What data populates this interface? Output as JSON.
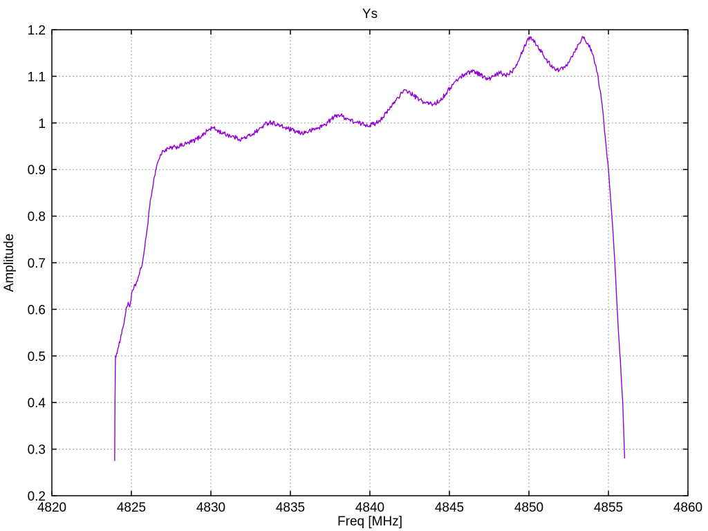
{
  "chart_data": {
    "type": "line",
    "title": "Ys",
    "xlabel": "Freq [MHz]",
    "ylabel": "Amplitude",
    "xlim": [
      4820,
      4860
    ],
    "ylim": [
      0.2,
      1.2
    ],
    "xticks": [
      4820,
      4825,
      4830,
      4835,
      4840,
      4845,
      4850,
      4855,
      4860
    ],
    "xtick_labels": [
      "4820",
      "4825",
      "4830",
      "4835",
      "4840",
      "4845",
      "4850",
      "4855",
      "4860"
    ],
    "yticks": [
      0.2,
      0.3,
      0.4,
      0.5,
      0.6,
      0.7,
      0.8,
      0.9,
      1.0,
      1.1,
      1.2
    ],
    "ytick_labels": [
      "0.2",
      "0.3",
      "0.4",
      "0.5",
      "0.6",
      "0.7",
      "0.8",
      "0.9",
      "1",
      "1.1",
      "1.2"
    ],
    "grid": "dashed",
    "legend": "none",
    "colors": {
      "line": "#9400D3",
      "grid": "#ababab",
      "axis": "#000000",
      "background": "#ffffff",
      "text": "#000000"
    },
    "trace_noise_amplitude": 0.005,
    "series": [
      {
        "name": "Ys",
        "points": [
          [
            4823.95,
            0.275
          ],
          [
            4823.97,
            0.4
          ],
          [
            4824.0,
            0.5
          ],
          [
            4824.1,
            0.505
          ],
          [
            4824.2,
            0.52
          ],
          [
            4824.35,
            0.545
          ],
          [
            4824.5,
            0.565
          ],
          [
            4824.65,
            0.595
          ],
          [
            4824.8,
            0.615
          ],
          [
            4824.9,
            0.605
          ],
          [
            4825.0,
            0.63
          ],
          [
            4825.15,
            0.645
          ],
          [
            4825.3,
            0.655
          ],
          [
            4825.5,
            0.675
          ],
          [
            4825.7,
            0.7
          ],
          [
            4825.85,
            0.735
          ],
          [
            4826.0,
            0.775
          ],
          [
            4826.15,
            0.82
          ],
          [
            4826.3,
            0.855
          ],
          [
            4826.45,
            0.885
          ],
          [
            4826.6,
            0.91
          ],
          [
            4826.8,
            0.928
          ],
          [
            4827.0,
            0.94
          ],
          [
            4827.4,
            0.945
          ],
          [
            4827.8,
            0.948
          ],
          [
            4828.2,
            0.952
          ],
          [
            4828.6,
            0.957
          ],
          [
            4829.0,
            0.963
          ],
          [
            4829.4,
            0.972
          ],
          [
            4829.8,
            0.984
          ],
          [
            4830.1,
            0.99
          ],
          [
            4830.4,
            0.984
          ],
          [
            4830.8,
            0.977
          ],
          [
            4831.2,
            0.973
          ],
          [
            4831.6,
            0.968
          ],
          [
            4831.9,
            0.965
          ],
          [
            4832.2,
            0.969
          ],
          [
            4832.6,
            0.976
          ],
          [
            4833.0,
            0.985
          ],
          [
            4833.4,
            0.997
          ],
          [
            4833.7,
            1.002
          ],
          [
            4834.0,
            0.999
          ],
          [
            4834.4,
            0.993
          ],
          [
            4834.8,
            0.988
          ],
          [
            4835.2,
            0.983
          ],
          [
            4835.6,
            0.978
          ],
          [
            4836.0,
            0.98
          ],
          [
            4836.4,
            0.985
          ],
          [
            4836.8,
            0.99
          ],
          [
            4837.2,
            0.997
          ],
          [
            4837.6,
            1.009
          ],
          [
            4838.0,
            1.018
          ],
          [
            4838.3,
            1.014
          ],
          [
            4838.7,
            1.007
          ],
          [
            4839.1,
            1.001
          ],
          [
            4839.5,
            0.998
          ],
          [
            4840.0,
            0.995
          ],
          [
            4840.4,
            1.0
          ],
          [
            4840.8,
            1.012
          ],
          [
            4841.2,
            1.028
          ],
          [
            4841.6,
            1.048
          ],
          [
            4842.0,
            1.064
          ],
          [
            4842.3,
            1.07
          ],
          [
            4842.7,
            1.06
          ],
          [
            4843.1,
            1.05
          ],
          [
            4843.5,
            1.043
          ],
          [
            4844.0,
            1.04
          ],
          [
            4844.4,
            1.048
          ],
          [
            4844.8,
            1.064
          ],
          [
            4845.2,
            1.082
          ],
          [
            4845.6,
            1.096
          ],
          [
            4846.0,
            1.106
          ],
          [
            4846.5,
            1.112
          ],
          [
            4847.0,
            1.103
          ],
          [
            4847.4,
            1.093
          ],
          [
            4847.8,
            1.1
          ],
          [
            4848.2,
            1.108
          ],
          [
            4848.5,
            1.102
          ],
          [
            4848.9,
            1.11
          ],
          [
            4849.2,
            1.125
          ],
          [
            4849.6,
            1.155
          ],
          [
            4849.9,
            1.178
          ],
          [
            4850.1,
            1.185
          ],
          [
            4850.4,
            1.172
          ],
          [
            4850.8,
            1.152
          ],
          [
            4851.2,
            1.13
          ],
          [
            4851.6,
            1.118
          ],
          [
            4851.9,
            1.113
          ],
          [
            4852.3,
            1.122
          ],
          [
            4852.7,
            1.143
          ],
          [
            4853.1,
            1.168
          ],
          [
            4853.4,
            1.185
          ],
          [
            4853.7,
            1.171
          ],
          [
            4854.0,
            1.148
          ],
          [
            4854.3,
            1.108
          ],
          [
            4854.6,
            1.04
          ],
          [
            4854.8,
            0.97
          ],
          [
            4855.0,
            0.9
          ],
          [
            4855.15,
            0.83
          ],
          [
            4855.3,
            0.76
          ],
          [
            4855.45,
            0.67
          ],
          [
            4855.6,
            0.57
          ],
          [
            4855.75,
            0.49
          ],
          [
            4855.9,
            0.4
          ],
          [
            4855.97,
            0.33
          ],
          [
            4856.0,
            0.3
          ],
          [
            4856.02,
            0.28
          ]
        ]
      }
    ]
  }
}
